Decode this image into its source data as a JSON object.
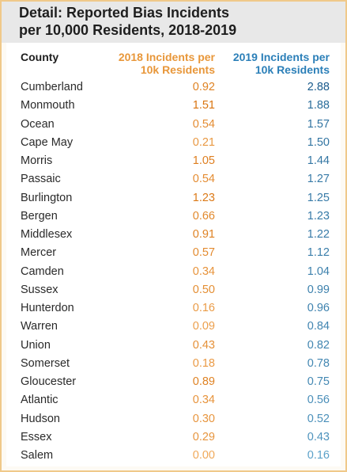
{
  "title_line1": "Detail: Reported Bias Incidents",
  "title_line2": "per 10,000 Residents, 2018-2019",
  "columns": {
    "county": "County",
    "y2018_line1": "2018 Incidents per",
    "y2018_line2": "10k Residents",
    "y2019_line1": "2019 Incidents per",
    "y2019_line2": "10k Residents"
  },
  "colors": {
    "accent_2018_light": "#f0a95a",
    "accent_2018_dark": "#d9740f",
    "accent_2019_light": "#6fb7dc",
    "accent_2019_dark": "#1a5b8c",
    "frame": "#f0c98a",
    "title_band": "#e8e8e8"
  },
  "chart_data": {
    "type": "table",
    "columns": [
      "County",
      "2018 Incidents per 10k Residents",
      "2019 Incidents per 10k Residents"
    ],
    "rows": [
      {
        "county": "Cumberland",
        "y2018": "0.92",
        "y2019": "2.88"
      },
      {
        "county": "Monmouth",
        "y2018": "1.51",
        "y2019": "1.88"
      },
      {
        "county": "Ocean",
        "y2018": "0.54",
        "y2019": "1.57"
      },
      {
        "county": "Cape May",
        "y2018": "0.21",
        "y2019": "1.50"
      },
      {
        "county": "Morris",
        "y2018": "1.05",
        "y2019": "1.44"
      },
      {
        "county": "Passaic",
        "y2018": "0.54",
        "y2019": "1.27"
      },
      {
        "county": "Burlington",
        "y2018": "1.23",
        "y2019": "1.25"
      },
      {
        "county": "Bergen",
        "y2018": "0.66",
        "y2019": "1.23"
      },
      {
        "county": "Middlesex",
        "y2018": "0.91",
        "y2019": "1.22"
      },
      {
        "county": "Mercer",
        "y2018": "0.57",
        "y2019": "1.12"
      },
      {
        "county": "Camden",
        "y2018": "0.34",
        "y2019": "1.04"
      },
      {
        "county": "Sussex",
        "y2018": "0.50",
        "y2019": "0.99"
      },
      {
        "county": "Hunterdon",
        "y2018": "0.16",
        "y2019": "0.96"
      },
      {
        "county": "Warren",
        "y2018": "0.09",
        "y2019": "0.84"
      },
      {
        "county": "Union",
        "y2018": "0.43",
        "y2019": "0.82"
      },
      {
        "county": "Somerset",
        "y2018": "0.18",
        "y2019": "0.78"
      },
      {
        "county": "Gloucester",
        "y2018": "0.89",
        "y2019": "0.75"
      },
      {
        "county": "Atlantic",
        "y2018": "0.34",
        "y2019": "0.56"
      },
      {
        "county": "Hudson",
        "y2018": "0.30",
        "y2019": "0.52"
      },
      {
        "county": "Essex",
        "y2018": "0.29",
        "y2019": "0.43"
      },
      {
        "county": "Salem",
        "y2018": "0.00",
        "y2019": "0.16"
      }
    ]
  }
}
